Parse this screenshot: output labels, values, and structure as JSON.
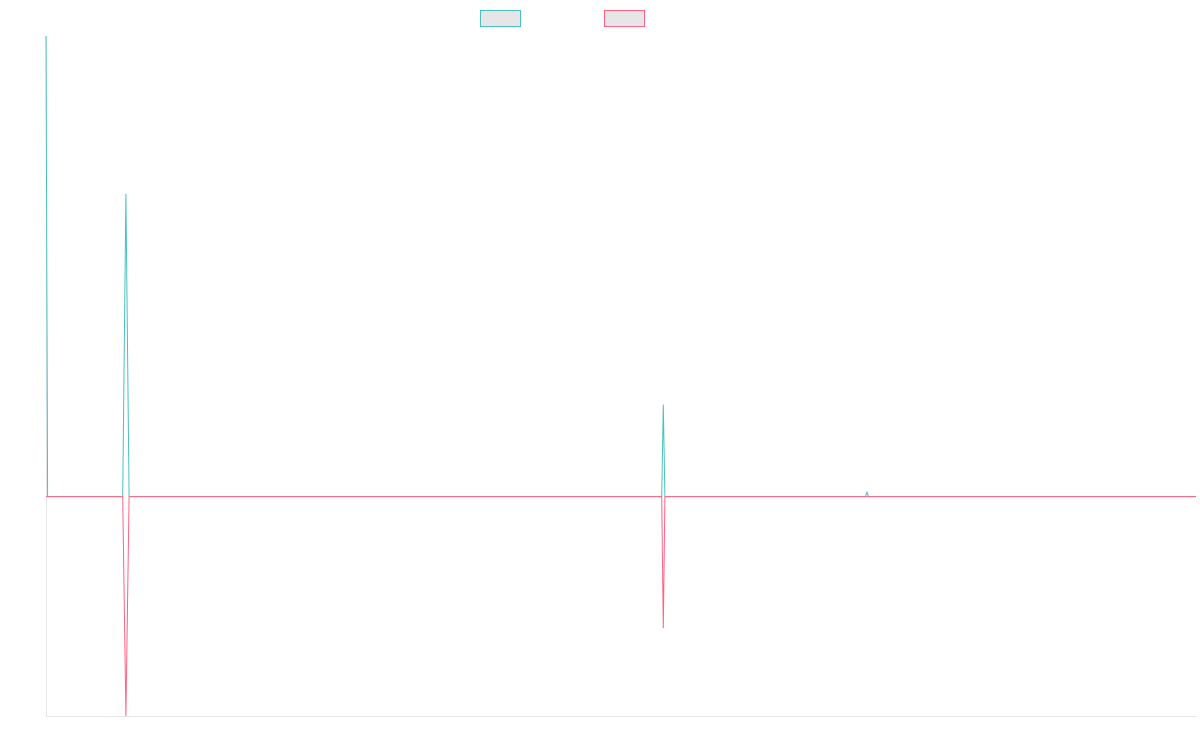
{
  "chart_data": {
    "type": "line",
    "title": "",
    "xlabel": "",
    "ylabel": "",
    "x_range": [
      0,
      1440
    ],
    "ylim": [
      -50,
      105
    ],
    "grid": false,
    "legend_position": "top-center",
    "series": [
      {
        "color": "#4bc0c0",
        "points": [
          {
            "x": 0,
            "y": 105
          },
          {
            "x": 2,
            "y": 0
          },
          {
            "x": 96,
            "y": 0
          },
          {
            "x": 100,
            "y": 69
          },
          {
            "x": 104,
            "y": 0
          },
          {
            "x": 771,
            "y": 0
          },
          {
            "x": 773,
            "y": 21
          },
          {
            "x": 775,
            "y": 0
          },
          {
            "x": 1026,
            "y": 0
          },
          {
            "x": 1028,
            "y": 1
          },
          {
            "x": 1030,
            "y": 0
          },
          {
            "x": 1440,
            "y": 0
          }
        ]
      },
      {
        "color": "#ff6384",
        "points": [
          {
            "x": 0,
            "y": 0
          },
          {
            "x": 96,
            "y": 0
          },
          {
            "x": 100,
            "y": -50
          },
          {
            "x": 104,
            "y": 0
          },
          {
            "x": 771,
            "y": 0
          },
          {
            "x": 773,
            "y": -30
          },
          {
            "x": 775,
            "y": 0
          },
          {
            "x": 1440,
            "y": 0
          }
        ]
      }
    ]
  }
}
